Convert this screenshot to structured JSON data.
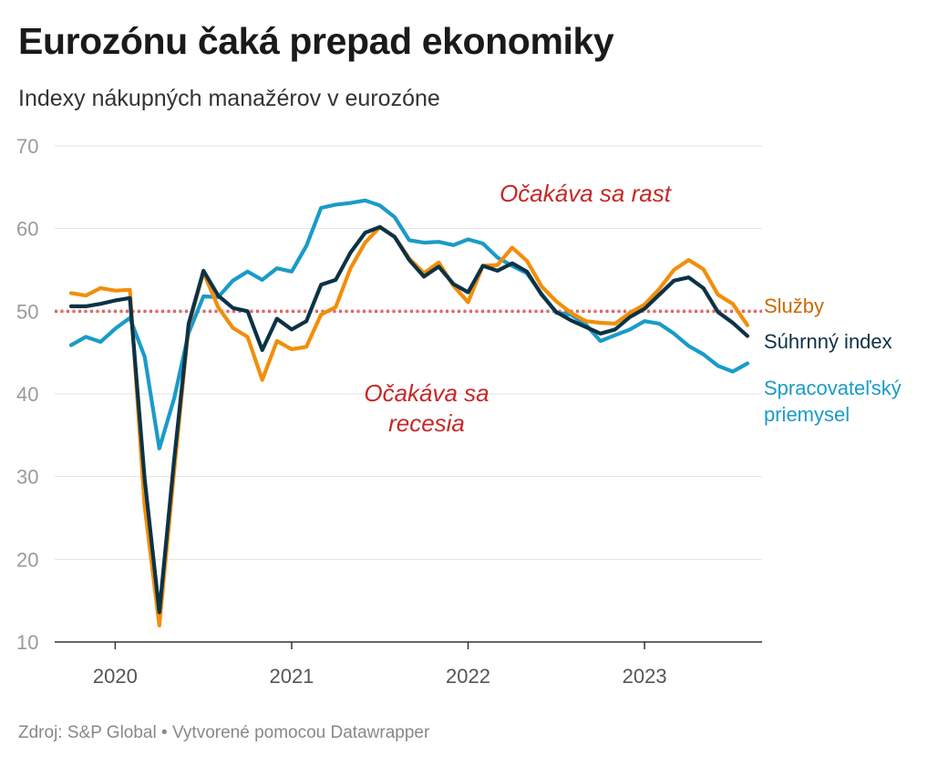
{
  "title": "Eurozónu čaká prepad ekonomiky",
  "subtitle": "Indexy nákupných manažérov v eurozóne",
  "footer": {
    "source": "Zdroj: S&P Global",
    "separator": "•",
    "credit": "Vytvorené pomocou Datawrapper"
  },
  "chart_data": {
    "type": "line",
    "title": "Eurozónu čaká prepad ekonomiky",
    "subtitle": "Indexy nákupných manažérov v eurozóne",
    "xlabel": "",
    "ylabel": "",
    "ylim": [
      10,
      70
    ],
    "y_ticks": [
      10,
      20,
      30,
      40,
      50,
      60,
      70
    ],
    "x_ticks": [
      "2020",
      "2021",
      "2022",
      "2023"
    ],
    "grid": true,
    "legend": "direct labels at right end of lines",
    "reference_line": {
      "value": 50,
      "color": "#e06666",
      "style": "dotted"
    },
    "annotations": [
      {
        "text": "Očakáva sa rast",
        "color": "#c62828"
      },
      {
        "text": "Očakáva sa recesia",
        "color": "#c62828"
      }
    ],
    "x": [
      "2019-10",
      "2019-11",
      "2019-12",
      "2020-01",
      "2020-02",
      "2020-03",
      "2020-04",
      "2020-05",
      "2020-06",
      "2020-07",
      "2020-08",
      "2020-09",
      "2020-10",
      "2020-11",
      "2020-12",
      "2021-01",
      "2021-02",
      "2021-03",
      "2021-04",
      "2021-05",
      "2021-06",
      "2021-07",
      "2021-08",
      "2021-09",
      "2021-10",
      "2021-11",
      "2021-12",
      "2022-01",
      "2022-02",
      "2022-03",
      "2022-04",
      "2022-05",
      "2022-06",
      "2022-07",
      "2022-08",
      "2022-09",
      "2022-10",
      "2022-11",
      "2022-12",
      "2023-01",
      "2023-02",
      "2023-03",
      "2023-04",
      "2023-05",
      "2023-06",
      "2023-07",
      "2023-08"
    ],
    "series": [
      {
        "name": "Služby",
        "color": "#f28e0b",
        "values": [
          52.2,
          51.9,
          52.8,
          52.5,
          52.6,
          26.4,
          12.0,
          30.5,
          48.3,
          54.7,
          50.5,
          48.0,
          46.9,
          41.7,
          46.4,
          45.4,
          45.7,
          49.6,
          50.5,
          55.2,
          58.3,
          60.2,
          59.0,
          56.4,
          54.6,
          55.9,
          53.1,
          51.1,
          55.5,
          55.6,
          57.7,
          56.1,
          53.0,
          51.2,
          49.8,
          48.8,
          48.6,
          48.5,
          49.8,
          50.8,
          52.7,
          55.0,
          56.2,
          55.1,
          52.0,
          50.9,
          48.3
        ]
      },
      {
        "name": "Súhrnný index",
        "color": "#0c3246",
        "values": [
          50.6,
          50.6,
          50.9,
          51.3,
          51.6,
          29.7,
          13.6,
          31.9,
          48.5,
          54.9,
          51.9,
          50.4,
          50.0,
          45.3,
          49.1,
          47.8,
          48.8,
          53.2,
          53.8,
          57.1,
          59.5,
          60.2,
          59.0,
          56.2,
          54.2,
          55.4,
          53.3,
          52.3,
          55.5,
          54.9,
          55.8,
          54.8,
          52.0,
          49.9,
          48.9,
          48.1,
          47.3,
          47.8,
          49.3,
          50.3,
          52.0,
          53.7,
          54.1,
          52.8,
          49.9,
          48.6,
          47.0
        ]
      },
      {
        "name": "Spracovateľský priemysel",
        "color": "#1a9bc9",
        "values": [
          45.9,
          46.9,
          46.3,
          47.9,
          49.2,
          44.5,
          33.4,
          39.4,
          47.4,
          51.8,
          51.7,
          53.7,
          54.8,
          53.8,
          55.2,
          54.8,
          57.9,
          62.5,
          62.9,
          63.1,
          63.4,
          62.8,
          61.4,
          58.6,
          58.3,
          58.4,
          58.0,
          58.7,
          58.2,
          56.5,
          55.5,
          54.6,
          52.1,
          49.8,
          49.6,
          48.4,
          46.4,
          47.1,
          47.8,
          48.8,
          48.5,
          47.3,
          45.8,
          44.8,
          43.4,
          42.7,
          43.7
        ]
      }
    ]
  }
}
